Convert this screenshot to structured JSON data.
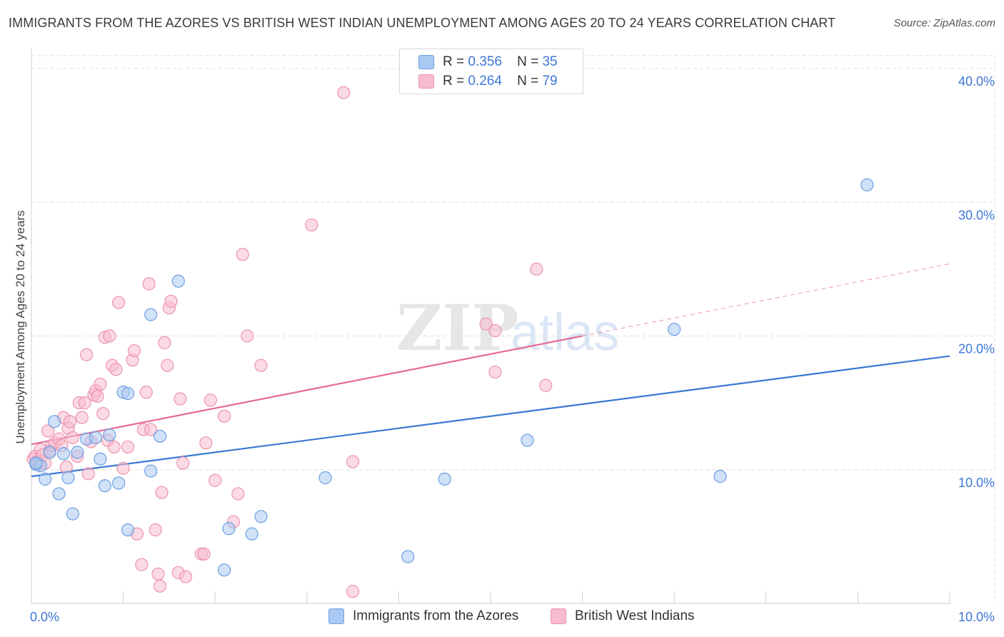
{
  "header": {
    "title": "IMMIGRANTS FROM THE AZORES VS BRITISH WEST INDIAN UNEMPLOYMENT AMONG AGES 20 TO 24 YEARS CORRELATION CHART",
    "source": "Source: ZipAtlas.com"
  },
  "legend": {
    "azores": {
      "r_label": "R =",
      "r_value": "0.356",
      "n_label": "N =",
      "n_value": "35"
    },
    "bwi": {
      "r_label": "R =",
      "r_value": "0.264",
      "n_label": "N =",
      "n_value": "79"
    }
  },
  "bottom_legend": {
    "azores": "Immigrants from the Azores",
    "bwi": "British West Indians"
  },
  "colors": {
    "azores_fill": "#a9c8f2",
    "azores_stroke": "#6d9fe0",
    "azores_line": "#3a78d2",
    "bwi_fill": "#f7bccd",
    "bwi_stroke": "#ec93ae",
    "bwi_line": "#e56b96",
    "axis_label": "#3d77d6",
    "grid": "#dddddd"
  },
  "chart_data": {
    "type": "scatter",
    "title": "IMMIGRANTS FROM THE AZORES VS BRITISH WEST INDIAN UNEMPLOYMENT AMONG AGES 20 TO 24 YEARS CORRELATION CHART",
    "xlabel": "",
    "ylabel": "Unemployment Among Ages 20 to 24 years",
    "xlim": [
      0,
      10
    ],
    "ylim": [
      0,
      40
    ],
    "x_tick_labels": [
      "0.0%",
      "10.0%"
    ],
    "y_ticks": [
      10,
      20,
      30,
      40
    ],
    "y_tick_labels": [
      "10.0%",
      "20.0%",
      "30.0%",
      "40.0%"
    ],
    "grid": true,
    "legend_position": "top-center",
    "watermark": "ZIPatlas",
    "series": [
      {
        "name": "Immigrants from the Azores",
        "R": 0.356,
        "N": 35,
        "trend": {
          "x": [
            0,
            10
          ],
          "y": [
            9.5,
            18.5
          ]
        },
        "points": [
          [
            0.05,
            10.4
          ],
          [
            0.1,
            10.3
          ],
          [
            0.15,
            9.3
          ],
          [
            0.2,
            11.3
          ],
          [
            0.25,
            13.6
          ],
          [
            0.3,
            8.2
          ],
          [
            0.35,
            11.2
          ],
          [
            0.4,
            9.4
          ],
          [
            0.45,
            6.7
          ],
          [
            0.5,
            11.3
          ],
          [
            0.6,
            12.3
          ],
          [
            0.7,
            12.4
          ],
          [
            0.75,
            10.8
          ],
          [
            0.8,
            8.8
          ],
          [
            0.85,
            12.6
          ],
          [
            0.95,
            9.0
          ],
          [
            1.0,
            15.8
          ],
          [
            1.05,
            15.7
          ],
          [
            1.05,
            5.5
          ],
          [
            1.3,
            21.6
          ],
          [
            1.3,
            9.9
          ],
          [
            1.4,
            12.5
          ],
          [
            1.6,
            24.1
          ],
          [
            2.1,
            2.5
          ],
          [
            2.15,
            5.6
          ],
          [
            2.4,
            5.2
          ],
          [
            2.5,
            6.5
          ],
          [
            3.2,
            9.4
          ],
          [
            4.1,
            3.5
          ],
          [
            4.5,
            9.3
          ],
          [
            5.4,
            12.2
          ],
          [
            7.0,
            20.5
          ],
          [
            7.5,
            9.5
          ],
          [
            9.1,
            31.3
          ],
          [
            0.05,
            10.5
          ]
        ]
      },
      {
        "name": "British West Indians",
        "R": 0.264,
        "N": 79,
        "trend": {
          "x": [
            0,
            6
          ],
          "y": [
            11.9,
            20.0
          ]
        },
        "trend_extension": {
          "x": [
            6,
            10
          ],
          "y": [
            20.0,
            25.4
          ]
        },
        "points": [
          [
            0.02,
            10.8
          ],
          [
            0.04,
            11.0
          ],
          [
            0.06,
            10.6
          ],
          [
            0.08,
            10.4
          ],
          [
            0.1,
            11.5
          ],
          [
            0.12,
            11.1
          ],
          [
            0.15,
            10.5
          ],
          [
            0.18,
            12.9
          ],
          [
            0.2,
            11.4
          ],
          [
            0.22,
            11.8
          ],
          [
            0.25,
            12.0
          ],
          [
            0.3,
            12.3
          ],
          [
            0.33,
            11.8
          ],
          [
            0.35,
            13.9
          ],
          [
            0.38,
            10.2
          ],
          [
            0.4,
            13.1
          ],
          [
            0.42,
            13.6
          ],
          [
            0.45,
            12.4
          ],
          [
            0.5,
            11.0
          ],
          [
            0.52,
            15.0
          ],
          [
            0.55,
            13.9
          ],
          [
            0.58,
            15.0
          ],
          [
            0.6,
            18.6
          ],
          [
            0.62,
            9.7
          ],
          [
            0.65,
            12.1
          ],
          [
            0.68,
            15.6
          ],
          [
            0.7,
            15.9
          ],
          [
            0.72,
            15.5
          ],
          [
            0.75,
            16.4
          ],
          [
            0.78,
            14.2
          ],
          [
            0.8,
            19.9
          ],
          [
            0.83,
            12.2
          ],
          [
            0.85,
            20.0
          ],
          [
            0.88,
            17.8
          ],
          [
            0.9,
            11.7
          ],
          [
            0.92,
            17.5
          ],
          [
            0.95,
            22.5
          ],
          [
            1.0,
            10.1
          ],
          [
            1.05,
            11.7
          ],
          [
            1.1,
            18.2
          ],
          [
            1.12,
            18.9
          ],
          [
            1.15,
            5.2
          ],
          [
            1.2,
            2.9
          ],
          [
            1.22,
            13.0
          ],
          [
            1.25,
            15.8
          ],
          [
            1.28,
            23.9
          ],
          [
            1.3,
            13.0
          ],
          [
            1.35,
            5.5
          ],
          [
            1.38,
            2.2
          ],
          [
            1.4,
            1.3
          ],
          [
            1.42,
            8.3
          ],
          [
            1.45,
            19.5
          ],
          [
            1.48,
            17.8
          ],
          [
            1.5,
            22.1
          ],
          [
            1.52,
            22.6
          ],
          [
            1.6,
            2.3
          ],
          [
            1.62,
            15.3
          ],
          [
            1.65,
            10.5
          ],
          [
            1.68,
            2.0
          ],
          [
            1.85,
            3.7
          ],
          [
            1.88,
            3.7
          ],
          [
            1.9,
            12.0
          ],
          [
            1.95,
            15.2
          ],
          [
            2.0,
            9.2
          ],
          [
            2.1,
            14.0
          ],
          [
            2.2,
            6.1
          ],
          [
            2.25,
            8.2
          ],
          [
            2.3,
            26.1
          ],
          [
            2.35,
            20.0
          ],
          [
            2.5,
            17.8
          ],
          [
            3.05,
            28.3
          ],
          [
            3.4,
            38.2
          ],
          [
            3.5,
            0.9
          ],
          [
            3.5,
            10.6
          ],
          [
            4.95,
            20.9
          ],
          [
            5.05,
            20.4
          ],
          [
            5.05,
            17.3
          ],
          [
            5.5,
            25.0
          ],
          [
            5.6,
            16.3
          ]
        ]
      }
    ]
  }
}
